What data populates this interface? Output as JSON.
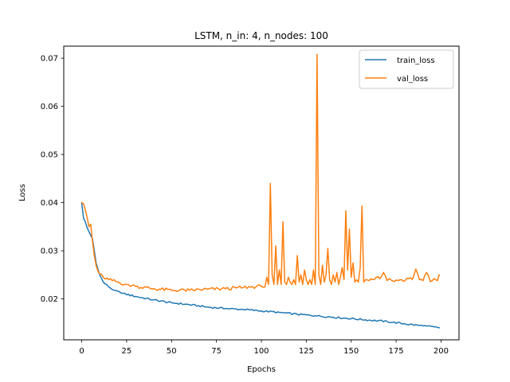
{
  "chart_data": {
    "type": "line",
    "title": "LSTM, n_in: 4, n_nodes: 100",
    "xlabel": "Epochs",
    "ylabel": "Loss",
    "xlim": [
      -10,
      210
    ],
    "ylim": [
      0.0115,
      0.0725
    ],
    "xticks": [
      0,
      25,
      50,
      75,
      100,
      125,
      150,
      175,
      200
    ],
    "yticks": [
      0.02,
      0.03,
      0.04,
      0.05,
      0.06,
      0.07
    ],
    "ytick_labels": [
      "0.02",
      "0.03",
      "0.04",
      "0.05",
      "0.06",
      "0.07"
    ],
    "grid": false,
    "legend_position": "top-right",
    "series": [
      {
        "name": "train_loss",
        "color": "#1f77b4",
        "keypoints": [
          [
            0,
            0.04
          ],
          [
            1,
            0.0368
          ],
          [
            2,
            0.036
          ],
          [
            3,
            0.0348
          ],
          [
            4,
            0.034
          ],
          [
            5,
            0.0332
          ],
          [
            6,
            0.0325
          ],
          [
            7,
            0.03
          ],
          [
            8,
            0.0275
          ],
          [
            9,
            0.0262
          ],
          [
            10,
            0.025
          ],
          [
            12,
            0.0235
          ],
          [
            15,
            0.0225
          ],
          [
            18,
            0.0218
          ],
          [
            22,
            0.0212
          ],
          [
            30,
            0.0205
          ],
          [
            40,
            0.0198
          ],
          [
            50,
            0.0192
          ],
          [
            60,
            0.0188
          ],
          [
            70,
            0.0183
          ],
          [
            80,
            0.018
          ],
          [
            90,
            0.0178
          ],
          [
            100,
            0.0175
          ],
          [
            110,
            0.0172
          ],
          [
            120,
            0.0168
          ],
          [
            130,
            0.0165
          ],
          [
            140,
            0.0162
          ],
          [
            150,
            0.0159
          ],
          [
            160,
            0.0156
          ],
          [
            170,
            0.0153
          ],
          [
            180,
            0.0148
          ],
          [
            190,
            0.0144
          ],
          [
            199,
            0.014
          ]
        ]
      },
      {
        "name": "val_loss",
        "color": "#ff7f0e",
        "keypoints": [
          [
            0,
            0.04
          ],
          [
            1,
            0.0398
          ],
          [
            2,
            0.0385
          ],
          [
            3,
            0.037
          ],
          [
            4,
            0.035
          ],
          [
            5,
            0.0355
          ],
          [
            6,
            0.032
          ],
          [
            7,
            0.029
          ],
          [
            8,
            0.027
          ],
          [
            9,
            0.0258
          ],
          [
            10,
            0.0252
          ],
          [
            12,
            0.0245
          ],
          [
            15,
            0.024
          ],
          [
            20,
            0.0235
          ],
          [
            25,
            0.023
          ],
          [
            30,
            0.0226
          ],
          [
            40,
            0.0221
          ],
          [
            50,
            0.0218
          ],
          [
            60,
            0.0218
          ],
          [
            70,
            0.022
          ],
          [
            80,
            0.0221
          ],
          [
            90,
            0.0224
          ],
          [
            100,
            0.0226
          ],
          [
            102,
            0.0225
          ],
          [
            103,
            0.0245
          ],
          [
            104,
            0.023
          ],
          [
            105,
            0.044
          ],
          [
            106,
            0.025
          ],
          [
            107,
            0.023
          ],
          [
            108,
            0.031
          ],
          [
            109,
            0.023
          ],
          [
            110,
            0.026
          ],
          [
            111,
            0.023
          ],
          [
            112,
            0.036
          ],
          [
            113,
            0.0235
          ],
          [
            114,
            0.023
          ],
          [
            115,
            0.0245
          ],
          [
            116,
            0.0235
          ],
          [
            117,
            0.023
          ],
          [
            118,
            0.024
          ],
          [
            119,
            0.023
          ],
          [
            120,
            0.029
          ],
          [
            121,
            0.0235
          ],
          [
            122,
            0.025
          ],
          [
            123,
            0.023
          ],
          [
            124,
            0.026
          ],
          [
            125,
            0.024
          ],
          [
            126,
            0.023
          ],
          [
            127,
            0.024
          ],
          [
            128,
            0.023
          ],
          [
            129,
            0.026
          ],
          [
            130,
            0.023
          ],
          [
            131,
            0.0708
          ],
          [
            132,
            0.025
          ],
          [
            133,
            0.023
          ],
          [
            134,
            0.027
          ],
          [
            135,
            0.0235
          ],
          [
            136,
            0.025
          ],
          [
            137,
            0.0305
          ],
          [
            138,
            0.024
          ],
          [
            139,
            0.023
          ],
          [
            140,
            0.025
          ],
          [
            141,
            0.0235
          ],
          [
            142,
            0.0255
          ],
          [
            143,
            0.023
          ],
          [
            144,
            0.0245
          ],
          [
            145,
            0.0265
          ],
          [
            146,
            0.024
          ],
          [
            147,
            0.0383
          ],
          [
            148,
            0.026
          ],
          [
            149,
            0.0345
          ],
          [
            150,
            0.0245
          ],
          [
            151,
            0.0275
          ],
          [
            152,
            0.0235
          ],
          [
            153,
            0.024
          ],
          [
            154,
            0.0235
          ],
          [
            155,
            0.0265
          ],
          [
            156,
            0.0393
          ],
          [
            157,
            0.0235
          ],
          [
            158,
            0.024
          ],
          [
            160,
            0.0238
          ],
          [
            162,
            0.024
          ],
          [
            164,
            0.0245
          ],
          [
            166,
            0.0242
          ],
          [
            168,
            0.0255
          ],
          [
            170,
            0.0238
          ],
          [
            172,
            0.024
          ],
          [
            174,
            0.0236
          ],
          [
            176,
            0.0238
          ],
          [
            178,
            0.024
          ],
          [
            180,
            0.0238
          ],
          [
            182,
            0.0242
          ],
          [
            184,
            0.024
          ],
          [
            186,
            0.0262
          ],
          [
            188,
            0.024
          ],
          [
            190,
            0.0238
          ],
          [
            192,
            0.0255
          ],
          [
            194,
            0.0236
          ],
          [
            196,
            0.0242
          ],
          [
            198,
            0.0238
          ],
          [
            199,
            0.025
          ]
        ]
      }
    ]
  }
}
